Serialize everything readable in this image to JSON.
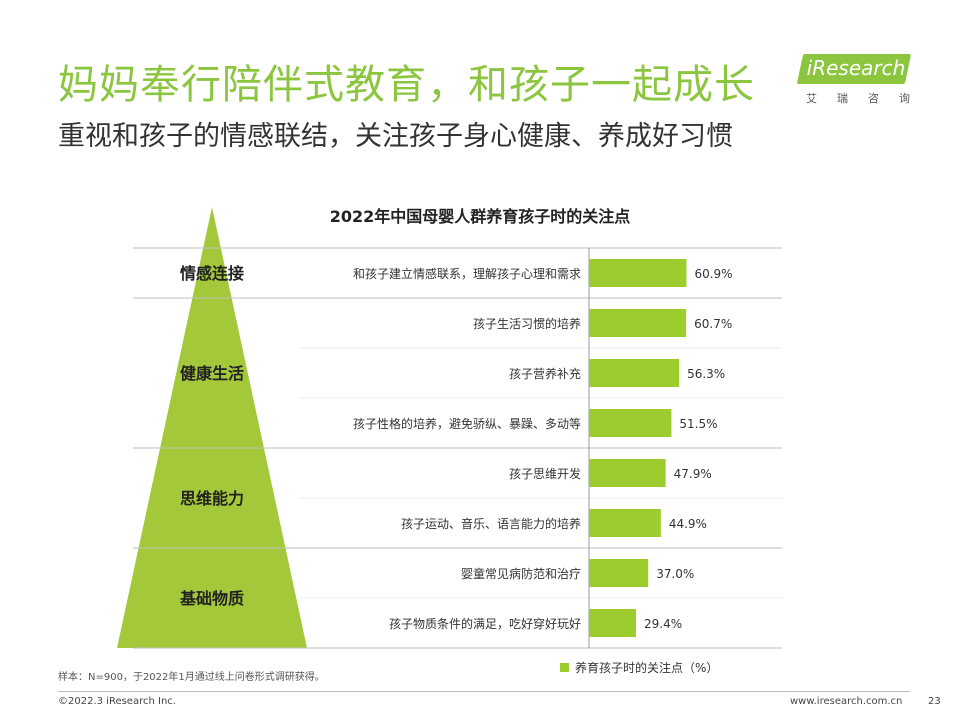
{
  "slide": {
    "title": "妈妈奉行陪伴式教育，和孩子一起成长",
    "subtitle": "重视和孩子的情感联结，关注孩子身心健康、养成好习惯",
    "logo": {
      "text": "iResearch",
      "sub": [
        "艾",
        "瑞",
        "咨",
        "询"
      ]
    },
    "footnote": "样本：N=900，于2022年1月通过线上问卷形式调研获得。",
    "copyright": "©2022.3 iResearch Inc.",
    "website": "www.iresearch.com.cn",
    "page_number": "23",
    "colors": {
      "accent": "#8cc63f",
      "bar": "#9ccc2e",
      "pyramid": "#a3c93a"
    }
  },
  "chart_data": {
    "type": "bar",
    "orientation": "horizontal",
    "title": "2022年中国母婴人群养育孩子时的关注点",
    "legend": {
      "label": "养育孩子时的关注点（%）",
      "placement": "bottom-right"
    },
    "unit": "%",
    "xlim": [
      0,
      100
    ],
    "groups": [
      {
        "label": "情感连接",
        "count": 1
      },
      {
        "label": "健康生活",
        "count": 3
      },
      {
        "label": "思维能力",
        "count": 2
      },
      {
        "label": "基础物质",
        "count": 2
      }
    ],
    "categories": [
      "和孩子建立情感联系，理解孩子心理和需求",
      "孩子生活习惯的培养",
      "孩子营养补充",
      "孩子性格的培养，避免骄纵、暴躁、多动等",
      "孩子思维开发",
      "孩子运动、音乐、语言能力的培养",
      "婴童常见病防范和治疗",
      "孩子物质条件的满足，吃好穿好玩好"
    ],
    "values": [
      60.9,
      60.7,
      56.3,
      51.5,
      47.9,
      44.9,
      37.0,
      29.4
    ],
    "value_labels": [
      "60.9%",
      "60.7%",
      "56.3%",
      "51.5%",
      "47.9%",
      "44.9%",
      "37.0%",
      "29.4%"
    ]
  }
}
